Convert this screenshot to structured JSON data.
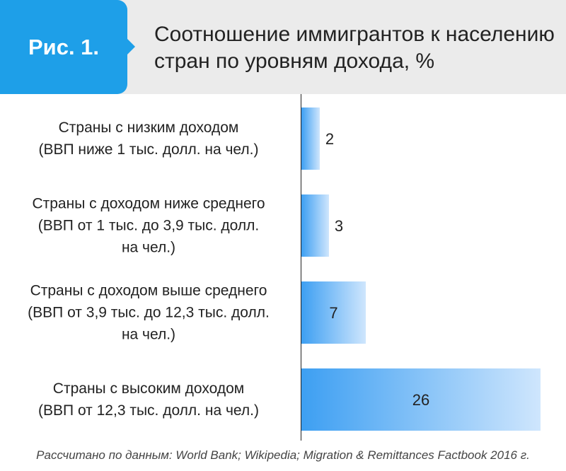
{
  "figure_label": "Рис. 1.",
  "source": "Рассчитано по данным: World Bank; Wikipedia; Migration & Remittances Factbook 2016 г.",
  "colors": {
    "accent": "#1e9fe8",
    "bar_start": "#3d9ff2",
    "bar_end": "#cfe6fd",
    "header_bg": "#ebebeb"
  },
  "chart_data": {
    "type": "bar",
    "orientation": "horizontal",
    "title": "Соотношение иммигрантов к населению стран по уровням дохода, %",
    "title_lines": [
      "Соотношение иммигрантов к населению",
      "стран по уровням дохода, %"
    ],
    "categories": [
      [
        "Страны с низким доходом",
        "(ВВП ниже 1 тыс. долл. на чел.)"
      ],
      [
        "Страны с доходом ниже среднего",
        "(ВВП от 1 тыс. до 3,9 тыс. долл.",
        "на  чел.)"
      ],
      [
        "Страны с доходом выше среднего",
        "(ВВП от 3,9 тыс. до 12,3 тыс. долл.",
        "на  чел.)"
      ],
      [
        "Страны с высоким доходом",
        "(ВВП от 12,3 тыс. долл. на  чел.)"
      ]
    ],
    "values": [
      2,
      3,
      7,
      26
    ],
    "xlim": [
      0,
      26
    ],
    "grid": false,
    "legend": false
  }
}
